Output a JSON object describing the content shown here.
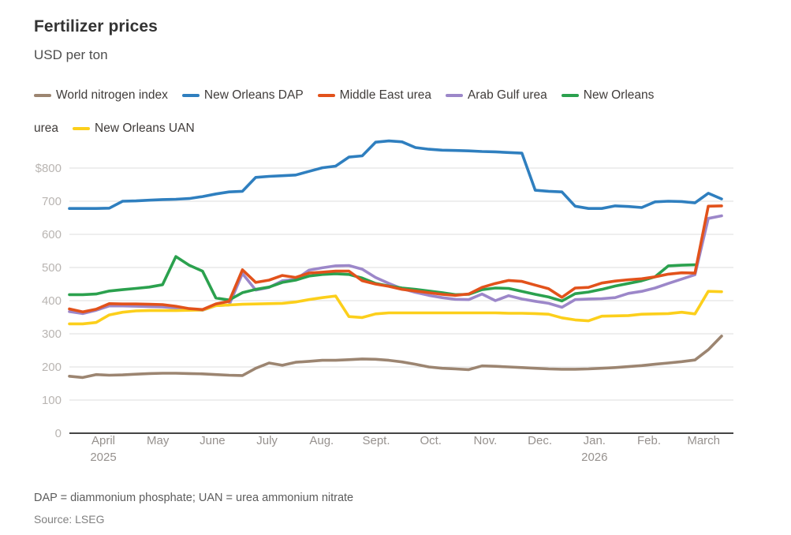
{
  "header": {
    "title": "Fertilizer prices",
    "subtitle": "USD per ton"
  },
  "footnotes": {
    "definitions": "DAP = diammonium phosphate; UAN = urea ammonium nitrate",
    "source": "Source: LSEG"
  },
  "chart_data": {
    "type": "line",
    "title": "Fertilizer prices",
    "ylabel": "USD per ton",
    "grid": "horizontal",
    "legend_position": "top",
    "ylim": [
      0,
      900
    ],
    "y_axis": {
      "ticks": [
        0,
        100,
        200,
        300,
        400,
        500,
        600,
        700,
        800
      ],
      "top_tick_label": "$800"
    },
    "x_axis": {
      "months": [
        {
          "label": "April",
          "year": "2025"
        },
        {
          "label": "May"
        },
        {
          "label": "June"
        },
        {
          "label": "July"
        },
        {
          "label": "Aug."
        },
        {
          "label": "Sept."
        },
        {
          "label": "Oct."
        },
        {
          "label": "Nov."
        },
        {
          "label": "Dec."
        },
        {
          "label": "Jan.",
          "year": "2026"
        },
        {
          "label": "Feb."
        },
        {
          "label": "March"
        }
      ],
      "note": "weekly points, April 2025 through March 2026"
    },
    "series": [
      {
        "name": "World nitrogen index",
        "color": "#9c8571",
        "values": [
          172,
          168,
          177,
          175,
          176,
          178,
          180,
          181,
          181,
          180,
          179,
          177,
          175,
          174,
          196,
          212,
          205,
          214,
          217,
          220,
          220,
          222,
          224,
          223,
          220,
          215,
          208,
          200,
          196,
          194,
          192,
          203,
          202,
          200,
          198,
          196,
          194,
          193,
          193,
          194,
          196,
          198,
          201,
          204,
          208,
          212,
          216,
          221,
          252,
          293
        ]
      },
      {
        "name": "New Orleans DAP",
        "color": "#2f7fbf",
        "values": [
          678,
          678,
          678,
          679,
          700,
          701,
          703,
          705,
          706,
          708,
          714,
          722,
          728,
          730,
          772,
          775,
          777,
          779,
          790,
          801,
          806,
          833,
          837,
          878,
          882,
          879,
          862,
          857,
          854,
          853,
          852,
          850,
          849,
          847,
          845,
          733,
          730,
          728,
          685,
          678,
          678,
          686,
          684,
          681,
          698,
          700,
          699,
          695,
          724,
          707
        ]
      },
      {
        "name": "Middle East urea",
        "color": "#e2521b",
        "values": [
          375,
          366,
          374,
          391,
          390,
          390,
          389,
          388,
          383,
          376,
          373,
          390,
          398,
          493,
          455,
          462,
          476,
          470,
          483,
          486,
          489,
          489,
          460,
          450,
          443,
          434,
          429,
          424,
          419,
          416,
          420,
          440,
          452,
          461,
          458,
          447,
          436,
          410,
          438,
          440,
          453,
          459,
          463,
          466,
          472,
          480,
          484,
          483,
          685,
          686
        ]
      },
      {
        "name": "Arab Gulf urea",
        "color": "#9c87c9",
        "values": [
          367,
          361,
          371,
          384,
          384,
          383,
          382,
          381,
          378,
          373,
          371,
          385,
          387,
          482,
          432,
          440,
          460,
          464,
          492,
          499,
          505,
          506,
          495,
          470,
          452,
          436,
          425,
          416,
          409,
          404,
          403,
          420,
          400,
          415,
          405,
          398,
          392,
          380,
          403,
          405,
          406,
          409,
          422,
          428,
          438,
          452,
          465,
          478,
          648,
          656
        ]
      },
      {
        "name": "New Orleans urea",
        "color": "#2ba14e",
        "values": [
          418,
          418,
          420,
          429,
          433,
          437,
          441,
          448,
          533,
          507,
          489,
          408,
          402,
          424,
          434,
          441,
          455,
          462,
          474,
          479,
          481,
          479,
          468,
          452,
          444,
          438,
          434,
          429,
          424,
          418,
          419,
          433,
          438,
          437,
          428,
          419,
          411,
          399,
          421,
          426,
          434,
          444,
          452,
          460,
          472,
          505,
          507,
          508,
          null,
          null
        ]
      },
      {
        "name": "New Orleans UAN",
        "color": "#fccf1b",
        "values": [
          330,
          330,
          334,
          357,
          365,
          369,
          370,
          370,
          370,
          371,
          372,
          385,
          387,
          389,
          390,
          391,
          392,
          396,
          403,
          409,
          414,
          352,
          349,
          360,
          363,
          363,
          363,
          363,
          363,
          363,
          363,
          363,
          363,
          362,
          362,
          361,
          359,
          348,
          342,
          339,
          353,
          354,
          355,
          359,
          360,
          361,
          365,
          360,
          428,
          427
        ]
      }
    ]
  }
}
